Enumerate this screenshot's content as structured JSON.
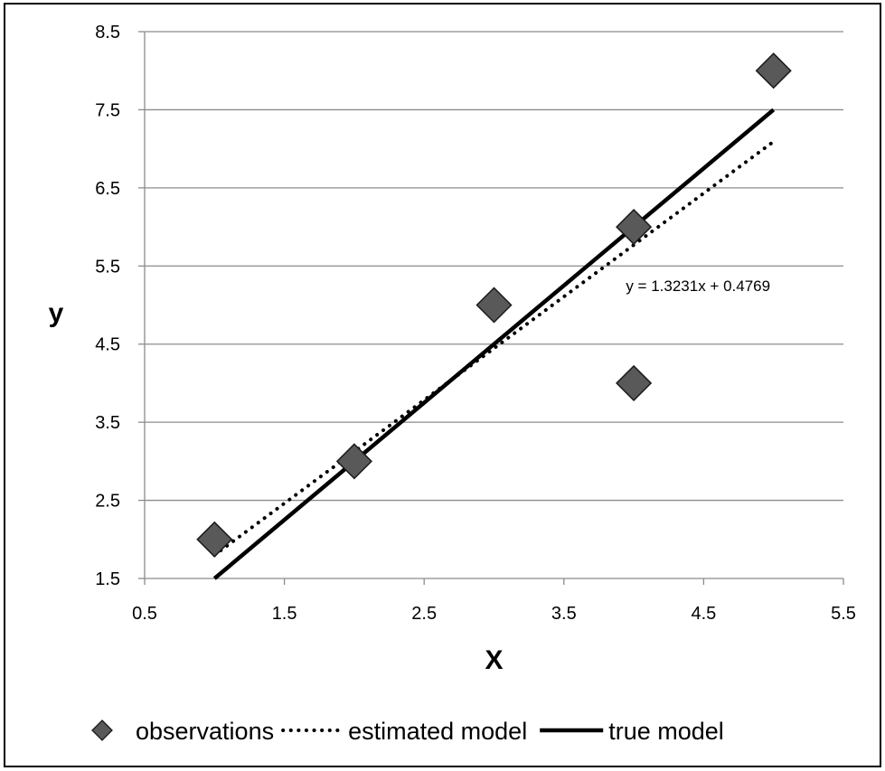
{
  "chart_data": {
    "type": "scatter",
    "xlabel": "X",
    "ylabel": "y",
    "xlim": [
      0.5,
      5.5
    ],
    "ylim": [
      1.5,
      8.5
    ],
    "x_ticks": [
      "0.5",
      "1.5",
      "2.5",
      "3.5",
      "4.5",
      "5.5"
    ],
    "y_ticks": [
      "1.5",
      "2.5",
      "3.5",
      "4.5",
      "5.5",
      "6.5",
      "7.5",
      "8.5"
    ],
    "grid": "horizontal",
    "legend_position": "bottom",
    "series": [
      {
        "name": "observations",
        "kind": "scatter",
        "marker": "diamond",
        "color": "#595959",
        "points": [
          [
            1,
            2
          ],
          [
            2,
            3
          ],
          [
            3,
            5
          ],
          [
            4,
            6
          ],
          [
            4,
            4
          ],
          [
            5,
            8
          ]
        ]
      },
      {
        "name": "estimated model",
        "kind": "line",
        "style": "dotted",
        "color": "#000000",
        "slope": 1.3231,
        "intercept": 0.4769,
        "points": [
          [
            1,
            1.8
          ],
          [
            5,
            7.0924
          ]
        ]
      },
      {
        "name": "true model",
        "kind": "line",
        "style": "solid",
        "color": "#000000",
        "points": [
          [
            1,
            1.5
          ],
          [
            5,
            7.5
          ]
        ]
      }
    ],
    "annotations": [
      {
        "text": "y = 1.3231x + 0.4769",
        "x": 4.46,
        "y": 5.25
      }
    ]
  }
}
